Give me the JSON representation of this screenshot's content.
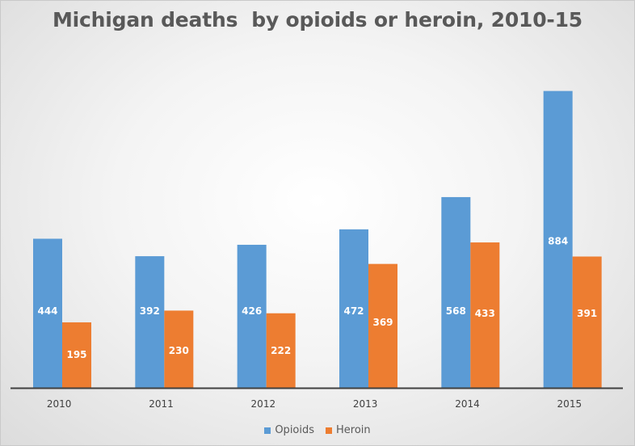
{
  "chart_data": {
    "type": "bar",
    "title": "Michigan deaths  by opioids or heroin, 2010-15",
    "categories": [
      "2010",
      "2011",
      "2012",
      "2013",
      "2014",
      "2015"
    ],
    "series": [
      {
        "name": "Opioids",
        "color": "#5b9bd5",
        "values": [
          444,
          392,
          426,
          472,
          568,
          884
        ]
      },
      {
        "name": "Heroin",
        "color": "#ed7d31",
        "values": [
          195,
          230,
          222,
          369,
          433,
          391
        ]
      }
    ],
    "xlabel": "",
    "ylabel": "",
    "ylim": [
      0,
      1000
    ],
    "data_labels": true,
    "grid": false,
    "legend_position": "bottom"
  }
}
